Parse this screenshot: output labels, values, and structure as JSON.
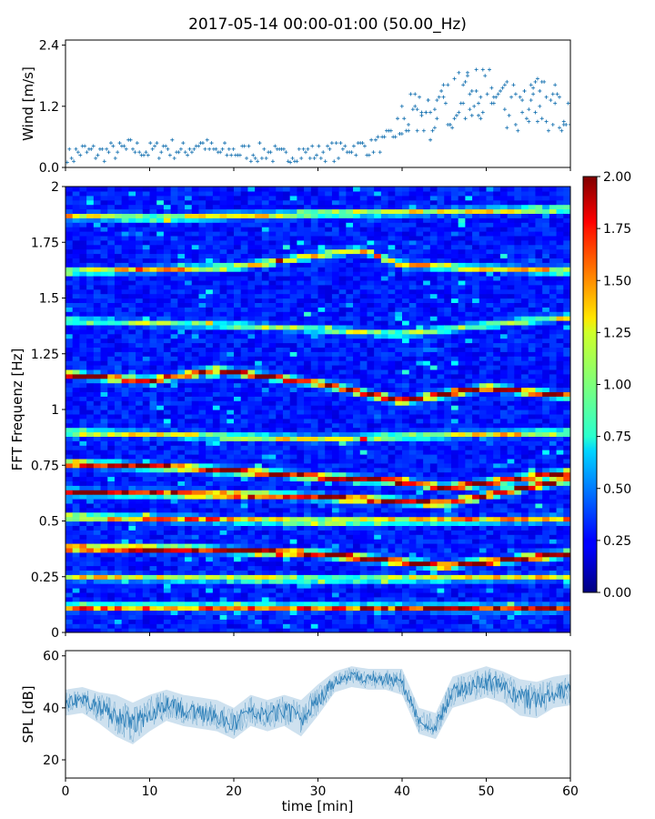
{
  "figure": {
    "title": "2017-05-14 00:00-01:00 (50.00_Hz)"
  },
  "chart_data": [
    {
      "type": "scatter",
      "panel": "wind",
      "ylabel": "Wind [m/s]",
      "xlabel": "",
      "xlim": [
        0,
        60
      ],
      "ylim": [
        0,
        2.5
      ],
      "yticks": [
        0.0,
        1.2,
        2.4
      ],
      "ytick_labels": [
        "0.0",
        "1.2",
        "2.4"
      ],
      "color": "#1f77b4",
      "marker": "+",
      "series": [
        {
          "x": [
            0,
            2,
            4,
            6,
            8,
            10,
            12,
            14,
            16,
            18,
            20,
            22,
            24,
            26,
            28,
            30,
            32,
            34,
            36,
            38,
            40,
            42,
            44,
            46,
            48,
            50,
            52,
            54,
            56,
            58,
            60
          ],
          "y": [
            0.2,
            0.3,
            0.3,
            0.3,
            0.4,
            0.3,
            0.4,
            0.3,
            0.5,
            0.3,
            0.3,
            0.3,
            0.3,
            0.2,
            0.3,
            0.3,
            0.3,
            0.4,
            0.4,
            0.5,
            0.8,
            1.1,
            1.0,
            1.3,
            1.4,
            1.5,
            1.2,
            1.1,
            1.3,
            1.2,
            1.1
          ]
        }
      ]
    },
    {
      "type": "heatmap",
      "panel": "spectrogram",
      "ylabel": "FFT Frequenz [Hz]",
      "xlabel": "",
      "xlim": [
        0,
        60
      ],
      "ylim": [
        0,
        2
      ],
      "yticks": [
        0,
        0.25,
        0.5,
        0.75,
        1,
        1.25,
        1.5,
        1.75,
        2
      ],
      "ytick_labels": [
        "0",
        "0.25",
        "0.5",
        "0.75",
        "1",
        "1.25",
        "1.5",
        "1.75",
        "2"
      ],
      "colormap": "jet",
      "colorbar": {
        "min": 0.0,
        "max": 2.0,
        "ticks": [
          "0.00",
          "0.25",
          "0.50",
          "0.75",
          "1.00",
          "1.25",
          "1.50",
          "1.75",
          "2.00"
        ]
      },
      "bands": [
        {
          "freq": [
            [
              0,
              0.115
            ],
            [
              30,
              0.115
            ],
            [
              60,
              0.11
            ]
          ],
          "intensity": 1.5
        },
        {
          "freq": [
            [
              0,
              0.25
            ],
            [
              30,
              0.24
            ],
            [
              60,
              0.25
            ]
          ],
          "intensity": 1.0
        },
        {
          "freq": [
            [
              0,
              0.38
            ],
            [
              15,
              0.375
            ],
            [
              30,
              0.355
            ],
            [
              45,
              0.3
            ],
            [
              60,
              0.355
            ]
          ],
          "intensity": 1.9
        },
        {
          "freq": [
            [
              0,
              0.52
            ],
            [
              30,
              0.5
            ],
            [
              60,
              0.51
            ]
          ],
          "intensity": 1.2
        },
        {
          "freq": [
            [
              0,
              0.63
            ],
            [
              20,
              0.62
            ],
            [
              30,
              0.61
            ],
            [
              45,
              0.58
            ],
            [
              60,
              0.69
            ]
          ],
          "intensity": 1.8
        },
        {
          "freq": [
            [
              0,
              0.76
            ],
            [
              15,
              0.74
            ],
            [
              30,
              0.7
            ],
            [
              40,
              0.68
            ],
            [
              45,
              0.65
            ],
            [
              60,
              0.72
            ]
          ],
          "intensity": 1.8
        },
        {
          "freq": [
            [
              0,
              0.9
            ],
            [
              30,
              0.87
            ],
            [
              60,
              0.9
            ]
          ],
          "intensity": 1.0
        },
        {
          "freq": [
            [
              0,
              1.16
            ],
            [
              10,
              1.13
            ],
            [
              18,
              1.18
            ],
            [
              30,
              1.12
            ],
            [
              40,
              1.04
            ],
            [
              50,
              1.1
            ],
            [
              60,
              1.06
            ]
          ],
          "intensity": 1.7
        },
        {
          "freq": [
            [
              0,
              1.4
            ],
            [
              20,
              1.38
            ],
            [
              40,
              1.34
            ],
            [
              60,
              1.42
            ]
          ],
          "intensity": 0.8
        },
        {
          "freq": [
            [
              0,
              1.62
            ],
            [
              20,
              1.64
            ],
            [
              35,
              1.72
            ],
            [
              40,
              1.65
            ],
            [
              60,
              1.62
            ]
          ],
          "intensity": 1.1
        },
        {
          "freq": [
            [
              0,
              1.87
            ],
            [
              10,
              1.86
            ],
            [
              30,
              1.88
            ],
            [
              60,
              1.9
            ]
          ],
          "intensity": 1.0
        }
      ]
    },
    {
      "type": "line",
      "panel": "spl",
      "ylabel": "SPL [dB]",
      "xlabel": "time [min]",
      "xlim": [
        0,
        60
      ],
      "ylim": [
        13,
        62
      ],
      "yticks": [
        20,
        40,
        60
      ],
      "ytick_labels": [
        "20",
        "40",
        "60"
      ],
      "xticks": [
        0,
        10,
        20,
        30,
        40,
        50,
        60
      ],
      "xtick_labels": [
        "0",
        "10",
        "20",
        "30",
        "40",
        "50",
        "60"
      ],
      "color": "#1f77b4",
      "series": [
        {
          "x": [
            0,
            2,
            4,
            6,
            8,
            10,
            12,
            14,
            16,
            18,
            20,
            22,
            24,
            26,
            28,
            30,
            32,
            34,
            36,
            38,
            40,
            42,
            44,
            46,
            48,
            50,
            52,
            54,
            56,
            58,
            60
          ],
          "y": [
            42,
            43,
            40,
            37,
            34,
            38,
            41,
            39,
            38,
            37,
            34,
            39,
            37,
            39,
            36,
            43,
            50,
            52,
            51,
            51,
            50,
            35,
            33,
            46,
            48,
            50,
            48,
            44,
            43,
            46,
            47
          ],
          "spread": [
            5,
            5,
            6,
            8,
            8,
            7,
            6,
            6,
            6,
            6,
            6,
            6,
            6,
            6,
            7,
            6,
            4,
            4,
            4,
            4,
            5,
            5,
            5,
            6,
            6,
            6,
            6,
            7,
            7,
            6,
            6
          ]
        }
      ]
    }
  ]
}
